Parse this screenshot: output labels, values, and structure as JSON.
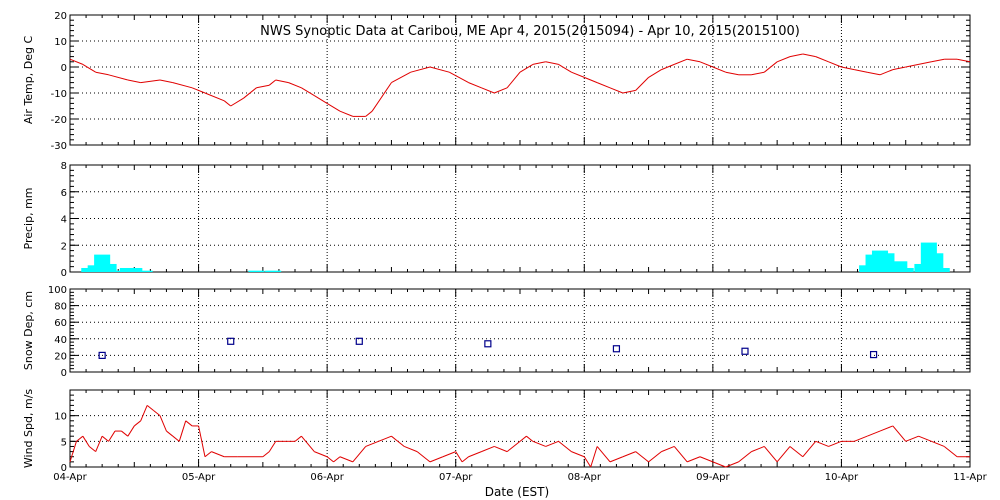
{
  "title": "NWS Synoptic Data at Caribou, ME   Apr  4, 2015(2015094) - Apr 10, 2015(2015100)",
  "colors": {
    "line": "#e00000",
    "precip": "#00ffff",
    "snow": "#00008b",
    "axis": "#000000",
    "grid": "#000000"
  },
  "chart_data": [
    {
      "type": "line",
      "ylabel": "Air Temp, Deg C",
      "ylim": [
        -30,
        20
      ],
      "yticks": [
        -30,
        -20,
        -10,
        0,
        10,
        20
      ],
      "xlim": [
        0,
        7
      ],
      "grid": "dotted",
      "series": [
        {
          "x": [
            0,
            0.1,
            0.2,
            0.3,
            0.45,
            0.55,
            0.7,
            0.8,
            0.95,
            1.05,
            1.2,
            1.25,
            1.35,
            1.45,
            1.55,
            1.6,
            1.7,
            1.8,
            1.9,
            2.0,
            2.1,
            2.2,
            2.3,
            2.35,
            2.5,
            2.65,
            2.8,
            2.95,
            3.1,
            3.2,
            3.3,
            3.4,
            3.5,
            3.6,
            3.7,
            3.8,
            3.9,
            4.0,
            4.1,
            4.2,
            4.3,
            4.4,
            4.5,
            4.6,
            4.7,
            4.8,
            4.9,
            5.0,
            5.1,
            5.2,
            5.3,
            5.4,
            5.5,
            5.6,
            5.7,
            5.8,
            5.9,
            6.0,
            6.1,
            6.2,
            6.3,
            6.4,
            6.5,
            6.6,
            6.7,
            6.8,
            6.9,
            7.0
          ],
          "y": [
            3,
            1,
            -2,
            -3,
            -5,
            -6,
            -5,
            -6,
            -8,
            -10,
            -13,
            -15,
            -12,
            -8,
            -7,
            -5,
            -6,
            -8,
            -11,
            -14,
            -17,
            -19,
            -19,
            -17,
            -6,
            -2,
            0,
            -2,
            -6,
            -8,
            -10,
            -8,
            -2,
            1,
            2,
            1,
            -2,
            -4,
            -6,
            -8,
            -10,
            -9,
            -4,
            -1,
            1,
            3,
            2,
            0,
            -2,
            -3,
            -3,
            -2,
            2,
            4,
            5,
            4,
            2,
            0,
            -1,
            -2,
            -3,
            -1,
            0,
            1,
            2,
            3,
            3,
            2
          ]
        }
      ]
    },
    {
      "type": "bar",
      "ylabel": "Precip, mm",
      "ylim": [
        0,
        8
      ],
      "yticks": [
        0,
        2,
        4,
        6,
        8
      ],
      "xlim": [
        0,
        7
      ],
      "grid": "dotted",
      "bars": [
        [
          0.15,
          0.3
        ],
        [
          0.2,
          0.5
        ],
        [
          0.25,
          1.3
        ],
        [
          0.3,
          0.6
        ],
        [
          0.38,
          0.1
        ],
        [
          0.45,
          0.3
        ],
        [
          0.5,
          0.3
        ],
        [
          0.58,
          0.1
        ],
        [
          1.45,
          0.1
        ],
        [
          1.58,
          0.1
        ],
        [
          6.2,
          0.5
        ],
        [
          6.25,
          1.3
        ],
        [
          6.3,
          1.6
        ],
        [
          6.35,
          1.4
        ],
        [
          6.4,
          0.2
        ],
        [
          6.45,
          0.8
        ],
        [
          6.5,
          0.3
        ],
        [
          6.63,
          0.6
        ],
        [
          6.68,
          2.2
        ],
        [
          6.73,
          1.4
        ],
        [
          6.78,
          0.3
        ]
      ]
    },
    {
      "type": "scatter",
      "ylabel": "Snow Dep, cm",
      "ylim": [
        0,
        100
      ],
      "yticks": [
        0,
        20,
        40,
        60,
        80,
        100
      ],
      "xlim": [
        0,
        7
      ],
      "grid": "dotted",
      "points": [
        [
          0.25,
          20
        ],
        [
          1.25,
          37
        ],
        [
          2.25,
          37
        ],
        [
          3.25,
          34
        ],
        [
          4.25,
          28
        ],
        [
          5.25,
          25
        ],
        [
          6.25,
          21
        ]
      ]
    },
    {
      "type": "line",
      "ylabel": "Wind Spd, m/s",
      "ylim": [
        0,
        15
      ],
      "yticks": [
        0,
        5,
        10
      ],
      "xlim": [
        0,
        7
      ],
      "xlabel": "Date (EST)",
      "xticklabels": [
        "04-Apr",
        "05-Apr",
        "06-Apr",
        "07-Apr",
        "08-Apr",
        "09-Apr",
        "10-Apr",
        "11-Apr"
      ],
      "grid": "dotted",
      "series": [
        {
          "x": [
            0,
            0.05,
            0.1,
            0.15,
            0.2,
            0.25,
            0.3,
            0.35,
            0.4,
            0.45,
            0.5,
            0.55,
            0.6,
            0.65,
            0.7,
            0.75,
            0.8,
            0.85,
            0.9,
            0.95,
            1.0,
            1.05,
            1.1,
            1.2,
            1.3,
            1.4,
            1.5,
            1.55,
            1.6,
            1.7,
            1.75,
            1.8,
            1.9,
            2.0,
            2.05,
            2.1,
            2.2,
            2.3,
            2.4,
            2.5,
            2.55,
            2.6,
            2.7,
            2.8,
            2.9,
            3.0,
            3.05,
            3.1,
            3.2,
            3.3,
            3.4,
            3.5,
            3.55,
            3.6,
            3.7,
            3.8,
            3.9,
            4.0,
            4.05,
            4.1,
            4.2,
            4.3,
            4.4,
            4.5,
            4.6,
            4.7,
            4.8,
            4.9,
            5.0,
            5.1,
            5.2,
            5.3,
            5.4,
            5.5,
            5.6,
            5.7,
            5.8,
            5.9,
            6.0,
            6.1,
            6.2,
            6.3,
            6.4,
            6.5,
            6.6,
            6.7,
            6.8,
            6.9,
            7.0
          ],
          "y": [
            1,
            5,
            6,
            4,
            3,
            6,
            5,
            7,
            7,
            6,
            8,
            9,
            12,
            11,
            10,
            7,
            6,
            5,
            9,
            8,
            8,
            2,
            3,
            2,
            2,
            2,
            2,
            3,
            5,
            5,
            5,
            6,
            3,
            2,
            1,
            2,
            1,
            4,
            5,
            6,
            5,
            4,
            3,
            1,
            2,
            3,
            1,
            2,
            3,
            4,
            3,
            5,
            6,
            5,
            4,
            5,
            3,
            2,
            0,
            4,
            1,
            2,
            3,
            1,
            3,
            4,
            1,
            2,
            1,
            0,
            1,
            3,
            4,
            1,
            4,
            2,
            5,
            4,
            5,
            5,
            6,
            7,
            8,
            5,
            6,
            5,
            4,
            2,
            2
          ]
        }
      ]
    }
  ]
}
